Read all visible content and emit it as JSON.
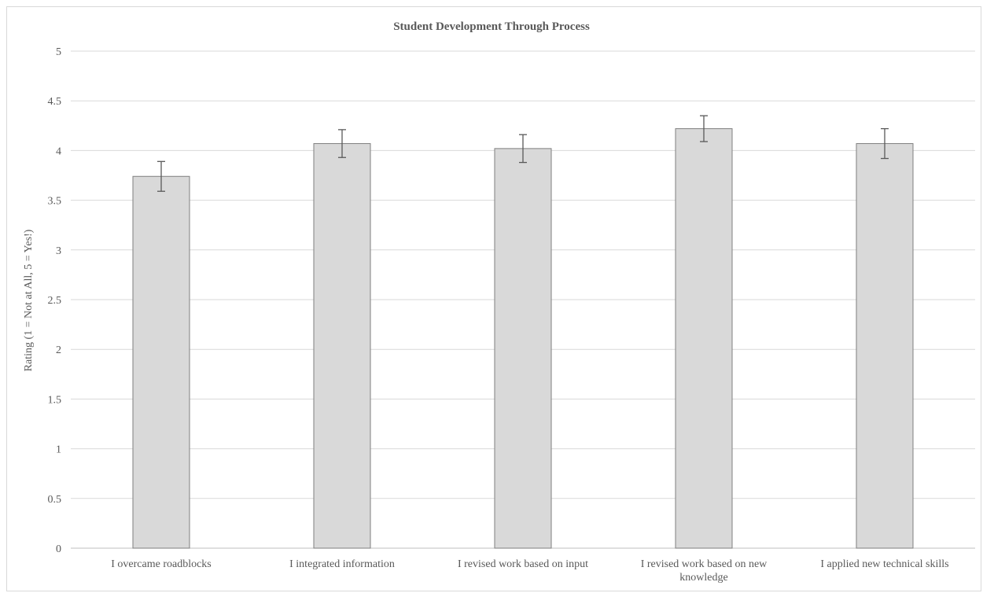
{
  "chart_data": {
    "type": "bar",
    "title": "Student Development Through Process",
    "xlabel": "",
    "ylabel": "Rating (1 = Not at All, 5 = Yes!)",
    "ylim": [
      0,
      5
    ],
    "yticks": [
      "0",
      "0.5",
      "1",
      "1.5",
      "2",
      "2.5",
      "3",
      "3.5",
      "4",
      "4.5",
      "5"
    ],
    "categories": [
      [
        "I overcame roadblocks"
      ],
      [
        "I integrated information"
      ],
      [
        "I revised work based on input"
      ],
      [
        "I revised work based on new",
        "knowledge"
      ],
      [
        "I applied new technical skills"
      ]
    ],
    "values": [
      3.74,
      4.07,
      4.02,
      4.22,
      4.07
    ],
    "error_bars": [
      0.15,
      0.14,
      0.14,
      0.13,
      0.15
    ],
    "grid": true,
    "legend": "none",
    "colors": {
      "bar_fill": "#d9d9d9",
      "bar_stroke": "#7f7f7f",
      "grid": "#d9d9d9",
      "error": "#595959"
    }
  }
}
